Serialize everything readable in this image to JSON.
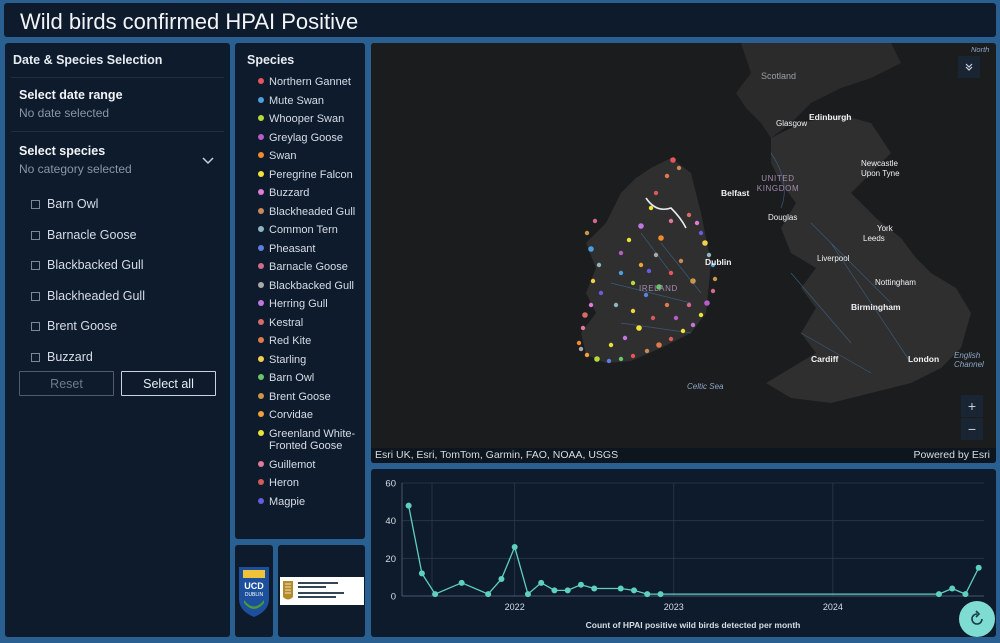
{
  "header": {
    "title": "Wild birds confirmed HPAI Positive"
  },
  "filters": {
    "title": "Date & Species Selection",
    "date_label": "Select date range",
    "date_value": "No date selected",
    "species_label": "Select species",
    "species_value": "No category selected",
    "options": [
      "Barn Owl",
      "Barnacle Goose",
      "Blackbacked Gull",
      "Blackheaded Gull",
      "Brent Goose",
      "Buzzard"
    ],
    "reset_label": "Reset",
    "selectall_label": "Select all"
  },
  "legend": {
    "title": "Species",
    "items": [
      {
        "label": "Northern Gannet",
        "color": "#e8545a"
      },
      {
        "label": "Mute Swan",
        "color": "#4a9fe0"
      },
      {
        "label": "Whooper Swan",
        "color": "#b6d93a"
      },
      {
        "label": "Greylag Goose",
        "color": "#b65dc9"
      },
      {
        "label": "Swan",
        "color": "#f28a2e"
      },
      {
        "label": "Peregrine Falcon",
        "color": "#f2e23a"
      },
      {
        "label": "Buzzard",
        "color": "#e27ad8"
      },
      {
        "label": "Blackheaded Gull",
        "color": "#c98a5a"
      },
      {
        "label": "Common Tern",
        "color": "#8fb5c2"
      },
      {
        "label": "Pheasant",
        "color": "#5d7fe0"
      },
      {
        "label": "Barnacle Goose",
        "color": "#d46a8a"
      },
      {
        "label": "Blackbacked Gull",
        "color": "#a9a9a9"
      },
      {
        "label": "Herring Gull",
        "color": "#c078e0"
      },
      {
        "label": "Kestral",
        "color": "#d96a6a"
      },
      {
        "label": "Red Kite",
        "color": "#e07a4a"
      },
      {
        "label": "Starling",
        "color": "#f2d04a"
      },
      {
        "label": "Barn Owl",
        "color": "#6ac46a"
      },
      {
        "label": "Brent Goose",
        "color": "#c9964a"
      },
      {
        "label": "Corvidae",
        "color": "#f2a03a"
      },
      {
        "label": "Greenland White-Fronted Goose",
        "color": "#e8e23a"
      },
      {
        "label": "Guillemot",
        "color": "#e07a9a"
      },
      {
        "label": "Heron",
        "color": "#d65a5a"
      },
      {
        "label": "Magpie",
        "color": "#6a5ae0"
      }
    ]
  },
  "logos": {
    "ucd_text": "UCD DUBLIN",
    "dept_text": "An Roinn Talmhaíochta, Bia agus Mara Department of Agriculture, Food and the Marine"
  },
  "map": {
    "labels": {
      "north": "North",
      "scotland": "Scotland",
      "glasgow": "Glasgow",
      "edinburgh": "Edinburgh",
      "uk": "UNITED KINGDOM",
      "newcastle": "Newcastle Upon Tyne",
      "belfast": "Belfast",
      "douglas": "Douglas",
      "york": "York",
      "leeds": "Leeds",
      "dublin": "Dublin",
      "liverpool": "Liverpool",
      "ireland": "IRELAND",
      "nottingham": "Nottingham",
      "birmingham": "Birmingham",
      "cardiff": "Cardiff",
      "london": "London",
      "celtic_sea": "Celtic Sea",
      "english_channel": "English Channel"
    },
    "attribution": "Esri UK, Esri, TomTom, Garmin, FAO, NOAA, USGS",
    "powered_by": "Powered by Esri"
  },
  "chart_data": {
    "type": "line",
    "title": "Count of HPAI positive wild birds detected per month",
    "xlabel": "Count of HPAI positive wild birds detected per month",
    "ylabel": "",
    "ylim": [
      0,
      60
    ],
    "yticks": [
      0,
      20,
      40,
      60
    ],
    "xticks": [
      "2022",
      "2023",
      "2024"
    ],
    "color": "#5fd0c0",
    "x": [
      "2021-05",
      "2021-06",
      "2021-07",
      "2021-09",
      "2021-11",
      "2021-12",
      "2022-01",
      "2022-02",
      "2022-03",
      "2022-04",
      "2022-05",
      "2022-06",
      "2022-07",
      "2022-09",
      "2022-10",
      "2022-11",
      "2022-12",
      "2024-09",
      "2024-10",
      "2024-11",
      "2024-12"
    ],
    "y": [
      48,
      12,
      1,
      7,
      1,
      9,
      26,
      1,
      7,
      3,
      3,
      6,
      4,
      4,
      3,
      1,
      1,
      1,
      4,
      1,
      15
    ]
  }
}
